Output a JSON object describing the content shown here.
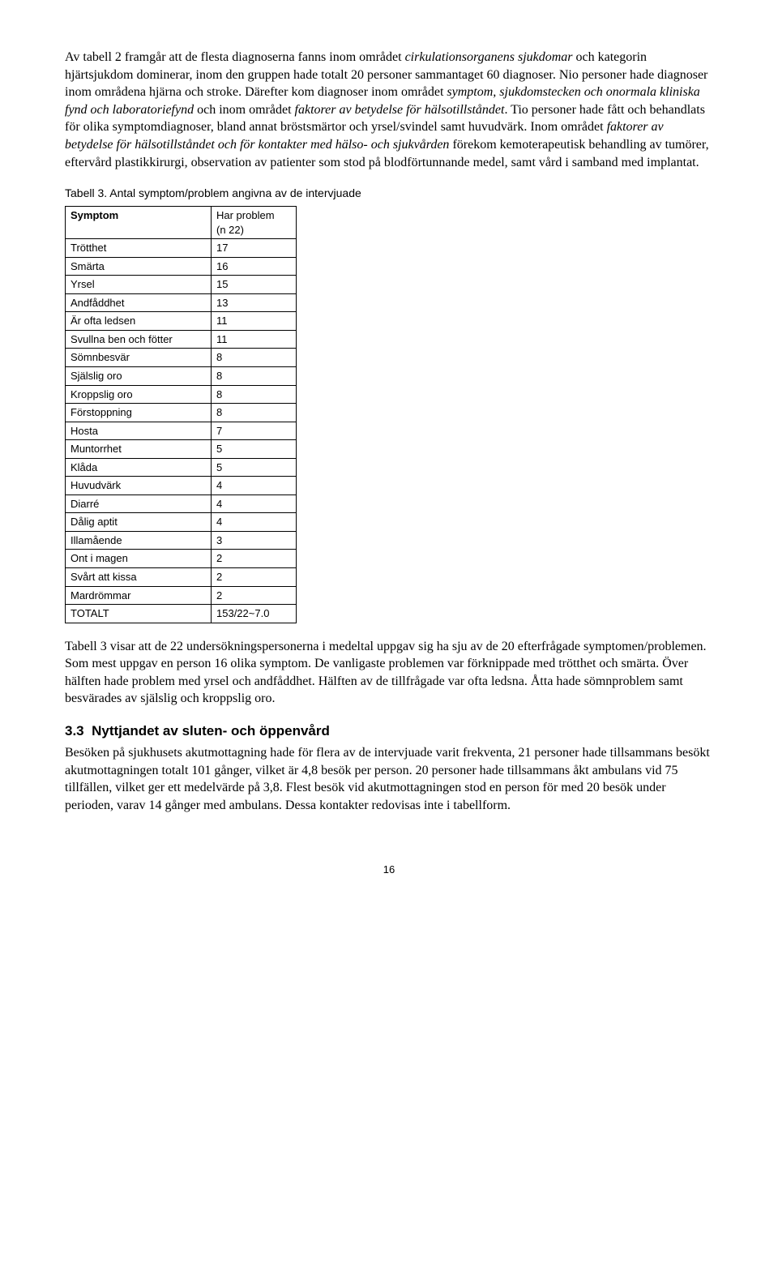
{
  "para1": {
    "t1": "Av tabell 2 framgår att de flesta diagnoserna fanns inom området ",
    "i1": "cirkulationsorganens sjukdomar",
    "t2": " och kategorin hjärtsjukdom dominerar, inom den gruppen hade totalt 20 personer sammantaget 60 diagnoser. Nio personer hade diagnoser inom områdena hjärna och stroke. Därefter kom diagnoser inom området ",
    "i2": "symptom, sjukdomstecken och onormala kliniska fynd och laboratoriefynd",
    "t3": " och inom området ",
    "i3": "faktorer av betydelse för hälsotillståndet",
    "t4": ". Tio personer hade fått och behandlats för olika symptomdiagnoser, bland annat bröstsmärtor och yrsel/svindel samt huvudvärk. Inom området ",
    "i4": "faktorer av betydelse för hälsotillståndet och för kontakter med hälso- och sjukvården",
    "t5": " förekom kemoterapeutisk behandling av tumörer, eftervård plastikkirurgi, observation av patienter som stod på blodförtunnande medel, samt vård i samband med implantat."
  },
  "table": {
    "caption": "Tabell 3. Antal symptom/problem angivna av de intervjuade",
    "header_col1": "Symptom",
    "header_col2_l1": "Har problem",
    "header_col2_l2": "(n 22)",
    "rows": [
      {
        "s": "Trötthet",
        "v": "17"
      },
      {
        "s": "Smärta",
        "v": "16"
      },
      {
        "s": "Yrsel",
        "v": "15"
      },
      {
        "s": "Andfåddhet",
        "v": "13"
      },
      {
        "s": "Är ofta ledsen",
        "v": "11"
      },
      {
        "s": "Svullna ben och fötter",
        "v": "11"
      },
      {
        "s": "Sömnbesvär",
        "v": "8"
      },
      {
        "s": "Själslig oro",
        "v": "8"
      },
      {
        "s": "Kroppslig oro",
        "v": "8"
      },
      {
        "s": "Förstoppning",
        "v": "8"
      },
      {
        "s": "Hosta",
        "v": "7"
      },
      {
        "s": "Muntorrhet",
        "v": "5"
      },
      {
        "s": "Klåda",
        "v": "5"
      },
      {
        "s": "Huvudvärk",
        "v": "4"
      },
      {
        "s": "Diarré",
        "v": "4"
      },
      {
        "s": "Dålig aptit",
        "v": "4"
      },
      {
        "s": "Illamående",
        "v": "3"
      },
      {
        "s": "Ont i magen",
        "v": "2"
      },
      {
        "s": "Svårt att kissa",
        "v": "2"
      },
      {
        "s": "Mardrömmar",
        "v": "2"
      },
      {
        "s": "TOTALT",
        "v": "153/22~7.0"
      }
    ]
  },
  "para2": "Tabell 3 visar att de 22 undersökningspersonerna i medeltal uppgav sig ha sju av de 20 efterfrågade symptomen/problemen. Som mest uppgav en person 16 olika symptom. De vanligaste problemen var förknippade med trötthet och smärta. Över hälften hade problem med yrsel och andfåddhet. Hälften av de tillfrågade var ofta ledsna. Åtta hade sömnproblem samt besvärades av själslig och kroppslig oro.",
  "section": {
    "number": "3.3",
    "title": "Nyttjandet av sluten- och öppenvård"
  },
  "para3": "Besöken på sjukhusets akutmottagning hade för flera av de intervjuade varit frekventa, 21 personer hade tillsammans besökt akutmottagningen totalt 101 gånger, vilket är 4,8 besök per person. 20 personer hade tillsammans åkt ambulans vid 75 tillfällen, vilket ger ett medelvärde på 3,8.  Flest besök vid akutmottagningen stod en person för med 20 besök under perioden, varav 14 gånger med ambulans. Dessa kontakter redovisas inte i tabellform.",
  "page_number": "16"
}
